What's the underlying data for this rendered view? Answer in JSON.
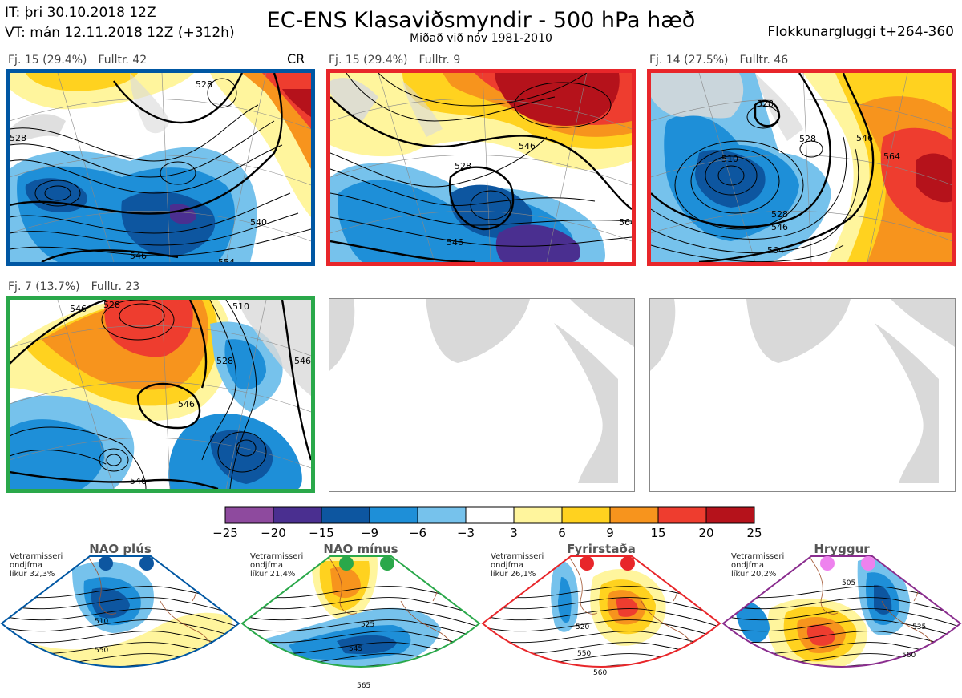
{
  "header": {
    "init_time": "IT: þri 30.10.2018 12Z",
    "valid_time": "VT: mán 12.11.2018 12Z  (+312h)",
    "title": "EC-ENS Klasaviðsmyndir - 500 hPa hæð",
    "subtitle": "Miðað við nóv 1981-2010",
    "window": "Flokkunargluggi t+264-360"
  },
  "clusters": [
    {
      "count": "Fj. 15 (29.4%)",
      "rep": "Fulltr. 42",
      "badge": "CR",
      "border": "#0057a3"
    },
    {
      "count": "Fj. 15 (29.4%)",
      "rep": "Fulltr. 9",
      "badge": "",
      "border": "#e8262a"
    },
    {
      "count": "Fj. 14 (27.5%)",
      "rep": "Fulltr. 46",
      "badge": "",
      "border": "#e8262a"
    },
    {
      "count": "Fj. 7 (13.7%)",
      "rep": "Fulltr. 23",
      "badge": "",
      "border": "#2aa84a"
    }
  ],
  "contour_labels": {
    "c1": [
      "528",
      "528",
      "540",
      "546",
      "554",
      "528"
    ],
    "c2": [
      "528",
      "546",
      "546",
      "564"
    ],
    "c3": [
      "528",
      "528",
      "510",
      "528",
      "546",
      "546",
      "564",
      "564"
    ],
    "c4": [
      "546",
      "528",
      "510",
      "528",
      "546",
      "546",
      "546"
    ]
  },
  "legend": {
    "labels": [
      "−25",
      "−20",
      "−15",
      "−9",
      "−6",
      "−3",
      "3",
      "6",
      "9",
      "15",
      "20",
      "25"
    ],
    "colors": [
      "#8e4a9e",
      "#4a2f90",
      "#0d56a0",
      "#1e8fd8",
      "#76c2ec",
      "#ffffff",
      "#fff59d",
      "#ffd21f",
      "#f7941d",
      "#ee3d2f",
      "#b5121b"
    ]
  },
  "regimes": [
    {
      "name": "NAO plús",
      "stat1": "Vetrarmisseri",
      "stat2": "ondjfma",
      "stat3": "líkur 32,3%",
      "color": "#0057a3",
      "dot": "#0d56a0",
      "labels": [
        "510",
        "550"
      ]
    },
    {
      "name": "NAO mínus",
      "stat1": "Vetrarmisseri",
      "stat2": "ondjfma",
      "stat3": "líkur 21,4%",
      "color": "#2aa84a",
      "dot": "#2aa84a",
      "labels": [
        "525",
        "545",
        "565"
      ]
    },
    {
      "name": "Fyrirstaða",
      "stat1": "Vetrarmisseri",
      "stat2": "ondjfma",
      "stat3": "líkur 26,1%",
      "color": "#e8262a",
      "dot": "#e8262a",
      "labels": [
        "520",
        "550",
        "560"
      ]
    },
    {
      "name": "Hryggur",
      "stat1": "Vetrarmisseri",
      "stat2": "ondjfma",
      "stat3": "líkur 20,2%",
      "color": "#8a2d8e",
      "dot": "#ee82ee",
      "labels": [
        "505",
        "535",
        "560"
      ]
    }
  ]
}
